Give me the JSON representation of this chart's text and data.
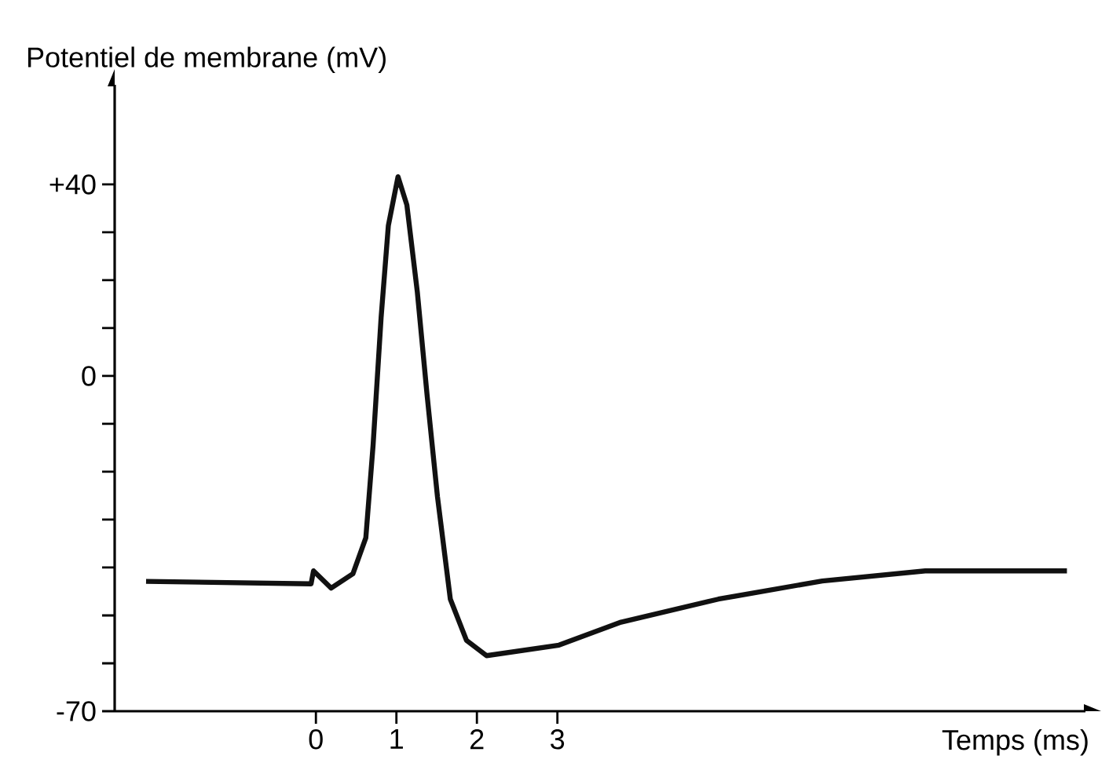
{
  "chart_data": {
    "type": "line",
    "xlabel": "Temps (ms)",
    "ylabel": "Potentiel de membrane (mV)",
    "x": [
      -2.11,
      -0.06,
      -0.03,
      0.19,
      0.46,
      0.62,
      0.71,
      0.81,
      0.9,
      1.02,
      1.13,
      1.26,
      1.38,
      1.51,
      1.67,
      1.87,
      2.12,
      3.02,
      3.79,
      5.0,
      6.29,
      7.57,
      9.33
    ],
    "series": [
      {
        "color": "#111111",
        "values": [
          -42.9,
          -43.4,
          -40.7,
          -44.3,
          -41.3,
          -33.8,
          -14.5,
          12.2,
          31.4,
          41.6,
          35.7,
          17.5,
          -3.8,
          -25.2,
          -46.6,
          -55.2,
          -58.4,
          -56.2,
          -51.4,
          -46.6,
          -42.8,
          -40.7,
          -40.7
        ]
      }
    ],
    "xlim": [
      -2.5,
      9.56
    ],
    "ylim": [
      -70,
      60.8
    ],
    "xticks": [
      0,
      1,
      2,
      3
    ],
    "yticks": [
      {
        "value": 40,
        "label": "+40"
      },
      {
        "value": 30,
        "label": null
      },
      {
        "value": 20,
        "label": null
      },
      {
        "value": 10,
        "label": null
      },
      {
        "value": 0,
        "label": "0"
      },
      {
        "value": -10,
        "label": null
      },
      {
        "value": -20,
        "label": null
      },
      {
        "value": -30,
        "label": null
      },
      {
        "value": -40,
        "label": null
      },
      {
        "value": -50,
        "label": null
      },
      {
        "value": -60,
        "label": null
      },
      {
        "value": -70,
        "label": "-70"
      }
    ],
    "grid": false,
    "marker": "none",
    "line_style": "solid"
  }
}
